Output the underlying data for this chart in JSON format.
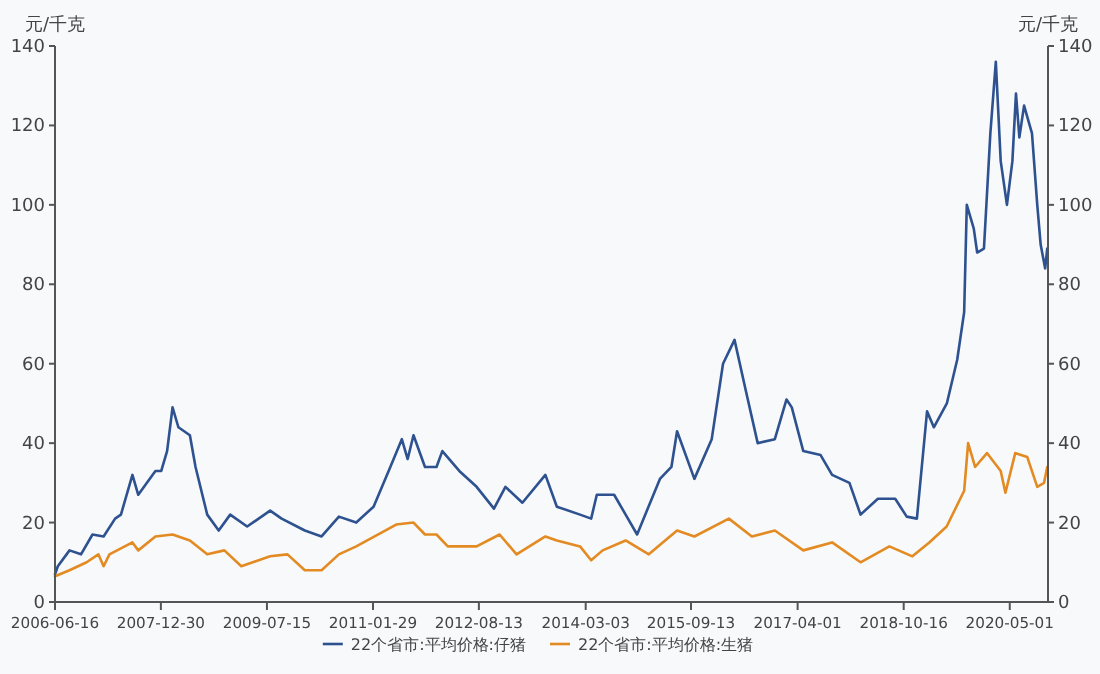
{
  "chart_data": {
    "type": "line",
    "ylabel": "元/千克",
    "y2label": "元/千克",
    "xlim": [
      "2006-06-16",
      "2020-11-20"
    ],
    "xticks": [
      "2006-06-16",
      "2007-12-30",
      "2009-07-15",
      "2011-01-29",
      "2012-08-13",
      "2014-03-03",
      "2015-09-13",
      "2017-04-01",
      "2018-10-16",
      "2020-05-01"
    ],
    "ylim": [
      0,
      140
    ],
    "yticks": [
      0,
      20,
      40,
      60,
      80,
      100,
      120,
      140
    ],
    "y2lim": [
      0,
      140
    ],
    "y2ticks": [
      0,
      20,
      40,
      60,
      80,
      100,
      120,
      140
    ],
    "grid": false,
    "legend": "bottom",
    "marker": "none",
    "line_style": "solid",
    "series": [
      {
        "name": "22个省市:平均价格:仔猪",
        "color": "#2e5190",
        "x": [
          "2006-06-16",
          "2006-07",
          "2006-09",
          "2006-11",
          "2007-01",
          "2007-03",
          "2007-05",
          "2007-06",
          "2007-08",
          "2007-09",
          "2007-12",
          "2008-01",
          "2008-02",
          "2008-03",
          "2008-04",
          "2008-06",
          "2008-07",
          "2008-09",
          "2008-11",
          "2009-01",
          "2009-04",
          "2009-08",
          "2009-10",
          "2010-02",
          "2010-05",
          "2010-08",
          "2010-11",
          "2011-02",
          "2011-05",
          "2011-07",
          "2011-08",
          "2011-09",
          "2011-11",
          "2012-01",
          "2012-02",
          "2012-05",
          "2012-08",
          "2012-11",
          "2013-01",
          "2013-04",
          "2013-08",
          "2013-10",
          "2014-02",
          "2014-04",
          "2014-05",
          "2014-08",
          "2014-10",
          "2014-12",
          "2015-04",
          "2015-06",
          "2015-07",
          "2015-10",
          "2016-01",
          "2016-03",
          "2016-05",
          "2016-07",
          "2016-09",
          "2016-12",
          "2017-02",
          "2017-03",
          "2017-05",
          "2017-08",
          "2017-10",
          "2018-01",
          "2018-03",
          "2018-06",
          "2018-09",
          "2018-11",
          "2018-12-25",
          "2019-02-17",
          "2019-03-25",
          "2019-06-02",
          "2019-07-27",
          "2019-09-02",
          "2019-09-16",
          "2019-10-23",
          "2019-11-10",
          "2019-12-16",
          "2020-01-19",
          "2020-02-17",
          "2020-03-14",
          "2020-04-16",
          "2020-05-15",
          "2020-06-03",
          "2020-06-21",
          "2020-07-16",
          "2020-08-27",
          "2020-09-24",
          "2020-10-12",
          "2020-11-05",
          "2020-11-16"
        ],
        "values": [
          7,
          9,
          13,
          12,
          17,
          16.5,
          21,
          22,
          32,
          27,
          33,
          33,
          38,
          49,
          44,
          42,
          34,
          22,
          18,
          22,
          19,
          23,
          21,
          18,
          16.5,
          21.5,
          20,
          24,
          34,
          41,
          36,
          42,
          34,
          34,
          38,
          33,
          29,
          23.5,
          29,
          25,
          32,
          24,
          22,
          21,
          27,
          27,
          22,
          17,
          31,
          34,
          43,
          31,
          41,
          60,
          66,
          53,
          40,
          41,
          51,
          49,
          38,
          37,
          32,
          30,
          22,
          26,
          26,
          21.5,
          21,
          48,
          44,
          50,
          61,
          73,
          100,
          94,
          88,
          89,
          118,
          136,
          111,
          100,
          111,
          128,
          117,
          125,
          118,
          100,
          90,
          84,
          89
        ]
      },
      {
        "name": "22个省市:平均价格:生猪",
        "color": "#e38b22",
        "x": [
          "2006-06-16",
          "2006-09",
          "2006-12",
          "2007-02",
          "2007-03",
          "2007-04",
          "2007-08",
          "2007-09",
          "2007-12",
          "2008-03",
          "2008-06",
          "2008-09",
          "2008-12",
          "2009-03",
          "2009-08",
          "2009-11",
          "2010-02",
          "2010-05",
          "2010-08",
          "2010-11",
          "2011-06",
          "2011-09",
          "2011-11",
          "2012-01",
          "2012-03",
          "2012-08",
          "2012-12",
          "2013-03",
          "2013-08",
          "2013-10",
          "2014-02",
          "2014-04",
          "2014-06",
          "2014-10",
          "2015-02",
          "2015-07",
          "2015-10",
          "2016-04",
          "2016-08",
          "2016-12",
          "2017-05",
          "2017-10",
          "2018-03",
          "2018-08",
          "2018-12",
          "2019-03",
          "2019-06",
          "2019-09-02",
          "2019-09-23",
          "2019-10-30",
          "2020-01-01",
          "2020-03-14",
          "2020-04-08",
          "2020-05-30",
          "2020-08-02",
          "2020-09-24",
          "2020-10-30",
          "2020-11-16"
        ],
        "values": [
          6.5,
          8,
          10,
          12,
          9,
          12,
          15,
          13,
          16.5,
          17,
          15.5,
          12,
          13,
          9,
          11.5,
          12,
          8,
          8,
          12,
          14,
          19.5,
          20,
          17,
          17,
          14,
          14,
          17,
          12,
          16.5,
          15.5,
          14,
          10.5,
          13,
          15.5,
          12,
          18,
          16.5,
          21,
          16.5,
          18,
          13,
          15,
          10,
          14,
          11.5,
          15,
          19,
          28,
          40,
          34,
          37.5,
          33,
          27.5,
          37.5,
          36.5,
          29,
          30,
          34
        ]
      }
    ]
  }
}
